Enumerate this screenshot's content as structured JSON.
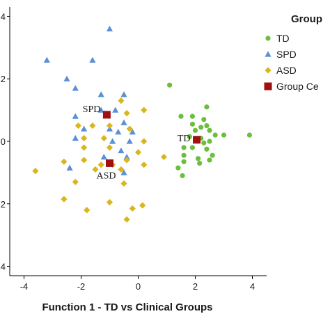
{
  "chart_data": {
    "type": "scatter",
    "xlabel": "Function 1 - TD vs Clinical Groups",
    "ylabel": "",
    "xlim": [
      -4.5,
      4.5
    ],
    "ylim": [
      -4.3,
      4.3
    ],
    "x_ticks": [
      -4,
      -2,
      0,
      2,
      4
    ],
    "y_ticks": [
      -4,
      -2,
      0,
      2,
      4
    ],
    "y_tick_labels": [
      "4",
      "2",
      "0",
      "2",
      "4"
    ],
    "grid": false,
    "legend": {
      "title": "Group",
      "placement": "top-right",
      "entries": [
        {
          "label": "TD",
          "marker": "circle",
          "color": "#6cbf3c"
        },
        {
          "label": "SPD",
          "marker": "triangle",
          "color": "#5b8fd6"
        },
        {
          "label": "ASD",
          "marker": "diamond",
          "color": "#d9b51e"
        },
        {
          "label": "Group Ce",
          "marker": "square",
          "color": "#a01010"
        }
      ]
    },
    "series": [
      {
        "name": "TD",
        "marker": "circle",
        "color": "#6cbf3c",
        "points": [
          [
            1.1,
            1.8
          ],
          [
            1.5,
            0.8
          ],
          [
            1.9,
            0.8
          ],
          [
            2.4,
            1.1
          ],
          [
            2.3,
            0.7
          ],
          [
            1.9,
            0.55
          ],
          [
            2.2,
            0.45
          ],
          [
            2.4,
            0.5
          ],
          [
            2.0,
            0.35
          ],
          [
            2.5,
            0.35
          ],
          [
            2.7,
            0.2
          ],
          [
            3.0,
            0.2
          ],
          [
            3.9,
            0.2
          ],
          [
            1.8,
            0.15
          ],
          [
            2.2,
            0.1
          ],
          [
            2.5,
            0.0
          ],
          [
            2.3,
            -0.05
          ],
          [
            1.6,
            -0.2
          ],
          [
            1.9,
            -0.2
          ],
          [
            2.4,
            -0.25
          ],
          [
            1.6,
            -0.45
          ],
          [
            2.1,
            -0.55
          ],
          [
            2.5,
            -0.6
          ],
          [
            2.6,
            -0.45
          ],
          [
            1.6,
            -0.65
          ],
          [
            1.4,
            -0.85
          ],
          [
            1.55,
            -1.1
          ],
          [
            2.15,
            -0.7
          ]
        ]
      },
      {
        "name": "SPD",
        "marker": "triangle",
        "color": "#5b8fd6",
        "points": [
          [
            -1.0,
            3.6
          ],
          [
            -3.2,
            2.6
          ],
          [
            -1.6,
            2.6
          ],
          [
            -2.5,
            2.0
          ],
          [
            -2.2,
            1.7
          ],
          [
            -1.3,
            1.5
          ],
          [
            -0.5,
            1.5
          ],
          [
            -1.3,
            1.0
          ],
          [
            -0.8,
            1.0
          ],
          [
            -2.2,
            0.8
          ],
          [
            -0.5,
            0.6
          ],
          [
            -1.9,
            0.4
          ],
          [
            -1.0,
            0.4
          ],
          [
            -0.7,
            0.3
          ],
          [
            -0.2,
            0.3
          ],
          [
            -2.2,
            0.1
          ],
          [
            -0.9,
            0.0
          ],
          [
            -0.3,
            0.0
          ],
          [
            -0.6,
            -0.3
          ],
          [
            -0.4,
            -0.5
          ],
          [
            -1.2,
            -0.5
          ],
          [
            -2.4,
            -0.85
          ],
          [
            -0.5,
            -1.0
          ]
        ]
      },
      {
        "name": "ASD",
        "marker": "diamond",
        "color": "#d9b51e",
        "points": [
          [
            -0.6,
            1.3
          ],
          [
            -0.4,
            0.9
          ],
          [
            0.2,
            1.0
          ],
          [
            -2.1,
            0.5
          ],
          [
            -1.6,
            0.5
          ],
          [
            -1.0,
            0.5
          ],
          [
            -0.3,
            0.4
          ],
          [
            -1.9,
            0.1
          ],
          [
            -1.2,
            0.1
          ],
          [
            0.2,
            0.0
          ],
          [
            -1.9,
            -0.2
          ],
          [
            -1.0,
            -0.2
          ],
          [
            0.0,
            -0.35
          ],
          [
            -2.6,
            -0.65
          ],
          [
            -1.9,
            -0.6
          ],
          [
            -1.3,
            -0.75
          ],
          [
            -0.9,
            -0.75
          ],
          [
            -0.4,
            -0.6
          ],
          [
            0.2,
            -0.75
          ],
          [
            0.9,
            -0.5
          ],
          [
            -3.6,
            -0.95
          ],
          [
            -1.5,
            -0.9
          ],
          [
            -0.6,
            -0.9
          ],
          [
            -2.2,
            -1.3
          ],
          [
            -0.5,
            -1.35
          ],
          [
            -2.6,
            -1.85
          ],
          [
            -1.8,
            -2.2
          ],
          [
            -1.0,
            -1.95
          ],
          [
            -0.2,
            -2.15
          ],
          [
            -0.4,
            -2.5
          ],
          [
            0.15,
            -2.05
          ]
        ]
      },
      {
        "name": "Group Ce",
        "marker": "square",
        "color": "#a01010",
        "points": [
          [
            -1.1,
            0.85
          ],
          [
            2.05,
            0.05
          ],
          [
            -1.0,
            -0.7
          ]
        ]
      }
    ],
    "centroid_labels": [
      {
        "text": "SPD",
        "x": -1.1,
        "y": 0.85
      },
      {
        "text": "TD",
        "x": 2.05,
        "y": 0.05
      },
      {
        "text": "ASD",
        "x": -1.0,
        "y": -0.7
      }
    ]
  }
}
